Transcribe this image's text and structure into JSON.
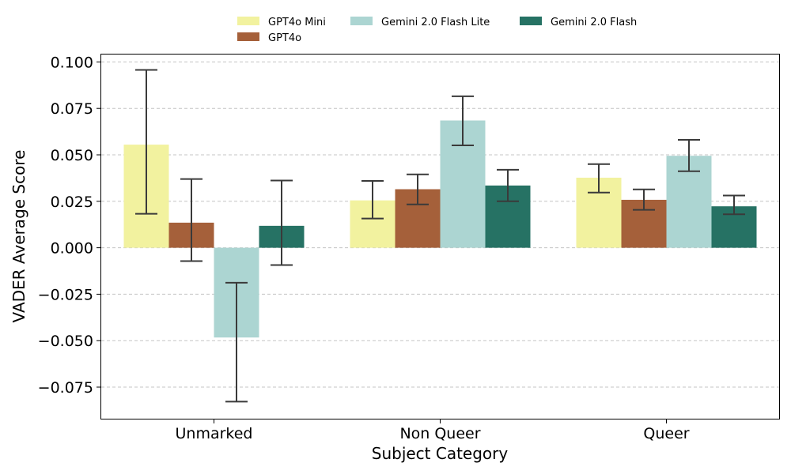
{
  "chart_data": {
    "type": "bar",
    "title": "",
    "xlabel": "Subject Category",
    "ylabel": "VADER Average Score",
    "categories": [
      "Unmarked",
      "Non Queer",
      "Queer"
    ],
    "ylim": [
      -0.092,
      0.104
    ],
    "yticks": [
      -0.075,
      -0.05,
      -0.025,
      0.0,
      0.025,
      0.05,
      0.075,
      0.1
    ],
    "ytick_labels": [
      "−0.075",
      "−0.050",
      "−0.025",
      "0.000",
      "0.025",
      "0.050",
      "0.075",
      "0.100"
    ],
    "grid": "y-dashed",
    "legend_position": "top-center",
    "series": [
      {
        "name": "GPT4o Mini",
        "color": "#f2f29f",
        "values": [
          0.0555,
          0.0255,
          0.0377
        ],
        "error_low": [
          0.0183,
          0.0157,
          0.0297
        ],
        "error_high": [
          0.0957,
          0.036,
          0.045
        ]
      },
      {
        "name": "GPT4o",
        "color": "#a5603a",
        "values": [
          0.0135,
          0.0315,
          0.0258
        ],
        "error_low": [
          -0.0072,
          0.0233,
          0.0204
        ],
        "error_high": [
          0.037,
          0.0395,
          0.0314
        ]
      },
      {
        "name": "Gemini 2.0 Flash Lite",
        "color": "#acd5d2",
        "values": [
          -0.0483,
          0.0685,
          0.0495
        ],
        "error_low": [
          -0.0828,
          0.0551,
          0.0412
        ],
        "error_high": [
          -0.0188,
          0.0815,
          0.0581
        ]
      },
      {
        "name": "Gemini 2.0 Flash",
        "color": "#267264",
        "values": [
          0.0118,
          0.0335,
          0.0223
        ],
        "error_low": [
          -0.0093,
          0.025,
          0.018
        ],
        "error_high": [
          0.0362,
          0.042,
          0.0281
        ]
      }
    ]
  }
}
